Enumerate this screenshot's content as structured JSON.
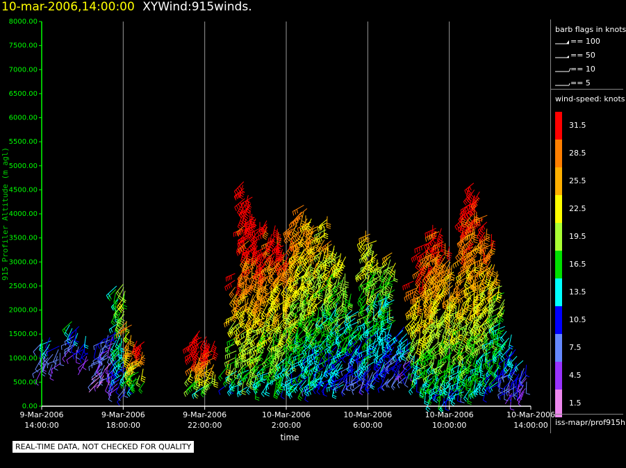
{
  "header": {
    "time": "10-mar-2006,14:00:00",
    "name": "XYWind:915winds."
  },
  "legend": {
    "barb_title": "barb flags in knots",
    "barbs": [
      "== 100",
      "== 50",
      "== 10",
      "== 5"
    ],
    "speed_title": "wind-speed: knots",
    "scale": [
      {
        "label": "31.5",
        "color": "#ff0000"
      },
      {
        "label": "28.5",
        "color": "#ff7f00"
      },
      {
        "label": "25.5",
        "color": "#ffb000"
      },
      {
        "label": "22.5",
        "color": "#ffff00"
      },
      {
        "label": "19.5",
        "color": "#aaff33"
      },
      {
        "label": "16.5",
        "color": "#00e000"
      },
      {
        "label": "13.5",
        "color": "#00ffff"
      },
      {
        "label": "10.5",
        "color": "#0000ff"
      },
      {
        "label": "7.5",
        "color": "#6688ff"
      },
      {
        "label": "4.5",
        "color": "#9933ff"
      },
      {
        "label": "1.5",
        "color": "#ee88ee"
      }
    ],
    "source": "iss-mapr/prof915h"
  },
  "footer": {
    "qc_note": "REAL-TIME DATA, NOT CHECKED FOR QUALITY"
  },
  "chart_data": {
    "type": "scatter",
    "title": "10-mar-2006,14:00:00  XYWind:915winds.",
    "xlabel": "time",
    "ylabel": "915 Profiler Altitude (m agl)",
    "ylim": [
      0,
      8000
    ],
    "y_ticks": [
      "0.00",
      "500.00",
      "1000.00",
      "1500.00",
      "2000.00",
      "2500.00",
      "3000.00",
      "3500.00",
      "4000.00",
      "4500.00",
      "5000.00",
      "5500.00",
      "6000.00",
      "6500.00",
      "7000.00",
      "7500.00",
      "8000.00"
    ],
    "x_ticks": [
      {
        "hours": 0,
        "line1": "9-Mar-2006",
        "line2": "14:00:00"
      },
      {
        "hours": 4,
        "line1": "9-Mar-2006",
        "line2": "18:00:00"
      },
      {
        "hours": 8,
        "line1": "9-Mar-2006",
        "line2": "22:00:00"
      },
      {
        "hours": 12,
        "line1": "10-Mar-2006",
        "line2": "2:00:00"
      },
      {
        "hours": 16,
        "line1": "10-Mar-2006",
        "line2": "6:00:00"
      },
      {
        "hours": 20,
        "line1": "10-Mar-2006",
        "line2": "10:00:00"
      },
      {
        "hours": 24,
        "line1": "10-Mar-2006",
        "line2": "14:00:00"
      }
    ],
    "xlim_hours": [
      0,
      24
    ],
    "grid": "vertical",
    "profiles": [
      {
        "hours": 0.05,
        "top": 1400,
        "bottom": 750,
        "speed": 9
      },
      {
        "hours": 0.4,
        "top": 1450,
        "bottom": 800,
        "speed": 10
      },
      {
        "hours": 0.8,
        "top": 1300,
        "bottom": 900,
        "speed": 9
      },
      {
        "hours": 1.5,
        "top": 1800,
        "bottom": 1200,
        "speed": 12
      },
      {
        "hours": 1.7,
        "top": 1700,
        "bottom": 1100,
        "speed": 10
      },
      {
        "hours": 2.2,
        "top": 1500,
        "bottom": 900,
        "speed": 10
      },
      {
        "hours": 2.8,
        "top": 1300,
        "bottom": 500,
        "speed": 7
      },
      {
        "hours": 3.1,
        "top": 1500,
        "bottom": 500,
        "speed": 7
      },
      {
        "hours": 3.4,
        "top": 1500,
        "bottom": 400,
        "speed": 6
      },
      {
        "hours": 3.8,
        "top": 2550,
        "bottom": 400,
        "speed": 14
      },
      {
        "hours": 4.0,
        "top": 2600,
        "bottom": 300,
        "speed": 17
      },
      {
        "hours": 4.3,
        "top": 1800,
        "bottom": 500,
        "speed": 24
      },
      {
        "hours": 4.6,
        "top": 1400,
        "bottom": 450,
        "speed": 27
      },
      {
        "hours": 4.9,
        "top": 1400,
        "bottom": 500,
        "speed": 28
      },
      {
        "hours": 7.5,
        "top": 1400,
        "bottom": 450,
        "speed": 31
      },
      {
        "hours": 7.8,
        "top": 1600,
        "bottom": 450,
        "speed": 31
      },
      {
        "hours": 8.1,
        "top": 1500,
        "bottom": 400,
        "speed": 31
      },
      {
        "hours": 8.4,
        "top": 1400,
        "bottom": 450,
        "speed": 30
      },
      {
        "hours": 9.2,
        "top": 1000,
        "bottom": 450,
        "speed": 20
      },
      {
        "hours": 9.6,
        "top": 2800,
        "bottom": 450,
        "speed": 24
      },
      {
        "hours": 10.0,
        "top": 4700,
        "bottom": 400,
        "speed": 29
      },
      {
        "hours": 10.3,
        "top": 4400,
        "bottom": 500,
        "speed": 29
      },
      {
        "hours": 10.6,
        "top": 3900,
        "bottom": 400,
        "speed": 28
      },
      {
        "hours": 10.9,
        "top": 3300,
        "bottom": 500,
        "speed": 27
      },
      {
        "hours": 11.2,
        "top": 3900,
        "bottom": 500,
        "speed": 26
      },
      {
        "hours": 11.5,
        "top": 3800,
        "bottom": 400,
        "speed": 26
      },
      {
        "hours": 11.8,
        "top": 3500,
        "bottom": 400,
        "speed": 25
      },
      {
        "hours": 12.1,
        "top": 3200,
        "bottom": 450,
        "speed": 24
      },
      {
        "hours": 12.4,
        "top": 3800,
        "bottom": 400,
        "speed": 24
      },
      {
        "hours": 12.7,
        "top": 4100,
        "bottom": 400,
        "speed": 23
      },
      {
        "hours": 13.0,
        "top": 4200,
        "bottom": 400,
        "speed": 22
      },
      {
        "hours": 13.3,
        "top": 3900,
        "bottom": 400,
        "speed": 21
      },
      {
        "hours": 13.6,
        "top": 3800,
        "bottom": 450,
        "speed": 22
      },
      {
        "hours": 13.9,
        "top": 4000,
        "bottom": 450,
        "speed": 20
      },
      {
        "hours": 14.2,
        "top": 3500,
        "bottom": 500,
        "speed": 20
      },
      {
        "hours": 14.5,
        "top": 3400,
        "bottom": 400,
        "speed": 18
      },
      {
        "hours": 14.8,
        "top": 3200,
        "bottom": 450,
        "speed": 18
      },
      {
        "hours": 15.1,
        "top": 2500,
        "bottom": 450,
        "speed": 15
      },
      {
        "hours": 15.4,
        "top": 2000,
        "bottom": 500,
        "speed": 14
      },
      {
        "hours": 15.7,
        "top": 1700,
        "bottom": 450,
        "speed": 12
      },
      {
        "hours": 16.0,
        "top": 3700,
        "bottom": 500,
        "speed": 19
      },
      {
        "hours": 16.3,
        "top": 3500,
        "bottom": 500,
        "speed": 18
      },
      {
        "hours": 16.6,
        "top": 3100,
        "bottom": 600,
        "speed": 17
      },
      {
        "hours": 16.9,
        "top": 3000,
        "bottom": 500,
        "speed": 16
      },
      {
        "hours": 17.2,
        "top": 3200,
        "bottom": 600,
        "speed": 17
      },
      {
        "hours": 17.5,
        "top": 1500,
        "bottom": 600,
        "speed": 11
      },
      {
        "hours": 17.8,
        "top": 1700,
        "bottom": 600,
        "speed": 11
      },
      {
        "hours": 18.1,
        "top": 1400,
        "bottom": 700,
        "speed": 10
      },
      {
        "hours": 18.4,
        "top": 2600,
        "bottom": 500,
        "speed": 22
      },
      {
        "hours": 18.7,
        "top": 3200,
        "bottom": 400,
        "speed": 26
      },
      {
        "hours": 19.0,
        "top": 3400,
        "bottom": 300,
        "speed": 26
      },
      {
        "hours": 19.3,
        "top": 3800,
        "bottom": 200,
        "speed": 25
      },
      {
        "hours": 19.6,
        "top": 3700,
        "bottom": 200,
        "speed": 25
      },
      {
        "hours": 19.9,
        "top": 3400,
        "bottom": 100,
        "speed": 24
      },
      {
        "hours": 20.2,
        "top": 3000,
        "bottom": 200,
        "speed": 22
      },
      {
        "hours": 20.5,
        "top": 2500,
        "bottom": 300,
        "speed": 20
      },
      {
        "hours": 20.8,
        "top": 4200,
        "bottom": 300,
        "speed": 26
      },
      {
        "hours": 21.1,
        "top": 4700,
        "bottom": 300,
        "speed": 27
      },
      {
        "hours": 21.4,
        "top": 4500,
        "bottom": 400,
        "speed": 26
      },
      {
        "hours": 21.7,
        "top": 4000,
        "bottom": 400,
        "speed": 25
      },
      {
        "hours": 22.0,
        "top": 3600,
        "bottom": 500,
        "speed": 23
      },
      {
        "hours": 22.3,
        "top": 3000,
        "bottom": 500,
        "speed": 21
      },
      {
        "hours": 22.6,
        "top": 2500,
        "bottom": 400,
        "speed": 17
      },
      {
        "hours": 22.9,
        "top": 1600,
        "bottom": 300,
        "speed": 13
      },
      {
        "hours": 23.2,
        "top": 1300,
        "bottom": 200,
        "speed": 11
      },
      {
        "hours": 23.5,
        "top": 1000,
        "bottom": 250,
        "speed": 10
      },
      {
        "hours": 23.8,
        "top": 900,
        "bottom": 300,
        "speed": 8
      }
    ]
  }
}
